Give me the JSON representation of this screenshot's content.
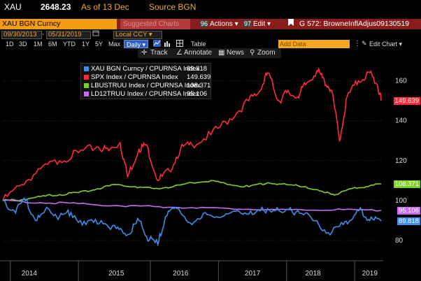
{
  "header": {
    "ticker": "XAU",
    "price": "2648.23",
    "as_of": "As of 13 Dec",
    "source": "Source BGN"
  },
  "security_bar": {
    "security": "XAU BGN Curncy",
    "suggested": "Suggested Charts",
    "actions_num": "96",
    "actions_label": "Actions",
    "edit_num": "97",
    "edit_label": "Edit",
    "chart_title": "G 572: BrowneInflAdjus09130519"
  },
  "date_bar": {
    "start": "09/30/2013",
    "end": "05/31/2019",
    "currency": "Local CCY"
  },
  "period_bar": {
    "periods": [
      "1D",
      "3D",
      "1M",
      "6M",
      "YTD",
      "1Y",
      "5Y",
      "Max"
    ],
    "frequency": "Daily",
    "table_label": "Table",
    "add_data_placeholder": "Add Data",
    "edit_chart": "Edit Chart"
  },
  "tools": {
    "track": "Track",
    "annotate": "Annotate",
    "news": "News",
    "zoom": "Zoom"
  },
  "colors": {
    "gold": "#3d8ee8",
    "spx": "#ff2a3c",
    "lbus": "#7ed321",
    "ld12": "#c56ff0",
    "orange": "#f39c12"
  },
  "legend": [
    {
      "name": "XAU BGN Curncy / CPURNSA Index",
      "value": "89.818"
    },
    {
      "name": "SPX Index / CPURNSA Index",
      "value": "149.639"
    },
    {
      "name": "LBUSTRUU Index / CPURNSA Index",
      "value": "108.371"
    },
    {
      "name": "LD12TRUU Index / CPURNSA Index",
      "value": "95.106"
    }
  ],
  "chart_data": {
    "type": "line",
    "x_labels": [
      "2014",
      "2015",
      "2016",
      "2017",
      "2018",
      "2019"
    ],
    "y_ticks": [
      "80",
      "100",
      "120",
      "140",
      "160"
    ],
    "ylim": [
      72,
      170
    ],
    "series": [
      {
        "name": "SPX Index / CPURNSA Index",
        "color": "#ff2a3c",
        "last_label": "149.639",
        "x": [
          0,
          0.05,
          0.1,
          0.15,
          0.2,
          0.25,
          0.28,
          0.31,
          0.33,
          0.36,
          0.38,
          0.41,
          0.44,
          0.47,
          0.5,
          0.55,
          0.6,
          0.65,
          0.68,
          0.7,
          0.73,
          0.75,
          0.78,
          0.8,
          0.83,
          0.85,
          0.87,
          0.89,
          0.91,
          0.94,
          0.97,
          0.99,
          1
        ],
        "y": [
          100,
          108,
          116,
          120,
          124,
          127,
          125,
          129,
          112,
          126,
          128,
          110,
          115,
          126,
          128,
          133,
          141,
          150,
          155,
          164,
          150,
          154,
          152,
          158,
          165,
          160,
          155,
          130,
          152,
          160,
          164,
          158,
          150
        ]
      },
      {
        "name": "LBUSTRUU Index / CPURNSA Index",
        "color": "#7ed321",
        "last_label": "108.371",
        "x": [
          0,
          0.05,
          0.1,
          0.15,
          0.2,
          0.25,
          0.3,
          0.35,
          0.4,
          0.45,
          0.5,
          0.55,
          0.6,
          0.65,
          0.7,
          0.75,
          0.8,
          0.85,
          0.88,
          0.92,
          0.96,
          1
        ],
        "y": [
          100,
          100.5,
          102,
          103,
          104,
          106,
          108,
          107,
          106,
          107,
          109,
          110,
          108,
          107,
          109,
          108,
          107,
          104,
          103,
          106,
          107,
          108.4
        ]
      },
      {
        "name": "LD12TRUU Index / CPURNSA Index",
        "color": "#c56ff0",
        "last_label": "95.106",
        "x": [
          0,
          0.1,
          0.2,
          0.3,
          0.4,
          0.5,
          0.6,
          0.7,
          0.8,
          0.9,
          1
        ],
        "y": [
          100,
          99,
          98.5,
          97.5,
          97,
          96.5,
          96,
          95.5,
          95.2,
          95.5,
          95.1
        ]
      },
      {
        "name": "XAU BGN Curncy / CPURNSA Index",
        "color": "#3d8ee8",
        "last_label": "89.818",
        "x": [
          0,
          0.03,
          0.06,
          0.09,
          0.12,
          0.15,
          0.18,
          0.22,
          0.26,
          0.3,
          0.33,
          0.36,
          0.38,
          0.41,
          0.43,
          0.46,
          0.5,
          0.54,
          0.58,
          0.62,
          0.66,
          0.7,
          0.74,
          0.78,
          0.82,
          0.86,
          0.9,
          0.93,
          0.95,
          0.97,
          1
        ],
        "y": [
          100,
          95,
          100,
          90,
          96,
          92,
          94,
          88,
          90,
          86,
          83,
          90,
          82,
          78,
          92,
          96,
          88,
          93,
          92,
          95,
          93,
          96,
          94,
          95,
          90,
          84,
          88,
          93,
          95,
          90,
          89.8
        ]
      }
    ]
  }
}
